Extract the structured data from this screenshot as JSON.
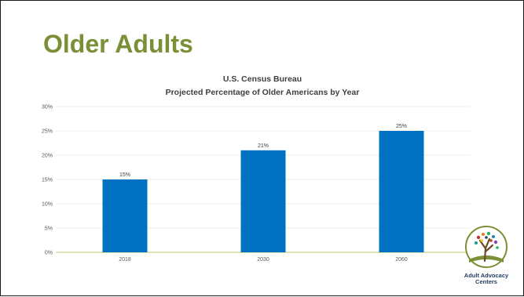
{
  "slide": {
    "title": "Older Adults"
  },
  "chart_data": {
    "type": "bar",
    "title": "U.S. Census Bureau",
    "subtitle": "Projected Percentage of Older Americans by Year",
    "categories": [
      "2018",
      "2030",
      "2060"
    ],
    "values": [
      15,
      21,
      25
    ],
    "data_labels": [
      "15%",
      "21%",
      "25%"
    ],
    "ylim": [
      0,
      30
    ],
    "y_ticks": [
      0,
      5,
      10,
      15,
      20,
      25,
      30
    ],
    "y_tick_labels": [
      "0%",
      "5%",
      "10%",
      "15%",
      "20%",
      "25%",
      "30%"
    ],
    "grid": true,
    "legend": "none",
    "bar_color": "#0070c0",
    "xlabel": "",
    "ylabel": ""
  },
  "logo": {
    "line1": "Adult Advocacy",
    "line2": "Centers",
    "icon": "tree-icon"
  },
  "colors": {
    "title": "#7a8f36",
    "bar": "#0070c0",
    "grid": "#e6e6e6",
    "baseline": "#c9d48a"
  }
}
